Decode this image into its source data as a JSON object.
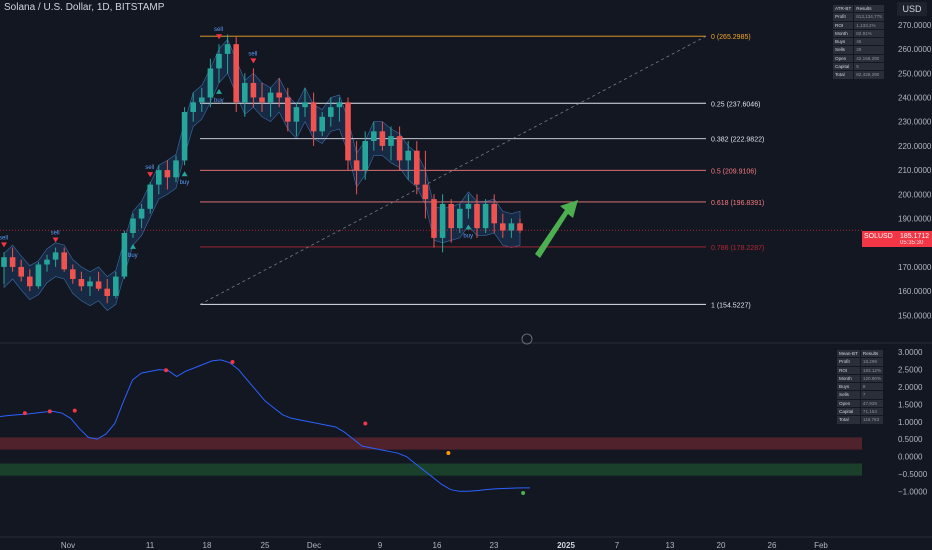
{
  "header": {
    "title": "Solana / U.S. Dollar, 1D, BITSTAMP"
  },
  "currency_button": "USD",
  "price_axis": {
    "ticks": [
      "270.0000",
      "260.0000",
      "250.0000",
      "240.0000",
      "230.0000",
      "220.0000",
      "210.0000",
      "200.0000",
      "190.0000",
      "180.0000",
      "170.0000",
      "160.0000",
      "150.0000"
    ]
  },
  "fib_levels": [
    {
      "label": "0 (265.2985)",
      "price": 265.2985,
      "color": "#f5a623"
    },
    {
      "label": "0.25 (237.6046)",
      "price": 237.6046,
      "color": "#e0e3eb"
    },
    {
      "label": "0.382 (222.9822)",
      "price": 222.9822,
      "color": "#e0e3eb"
    },
    {
      "label": "0.5 (209.9106)",
      "price": 209.9106,
      "color": "#f77c80"
    },
    {
      "label": "0.618 (196.8391)",
      "price": 196.8391,
      "color": "#f77c80"
    },
    {
      "label": "0.786 (178.2287)",
      "price": 178.2287,
      "color": "#b22833"
    },
    {
      "label": "1 (154.5227)",
      "price": 154.5227,
      "color": "#e0e3eb"
    }
  ],
  "current_price": {
    "symbol": "SOLUSD",
    "value": "185.1712",
    "countdown": "05:35:30"
  },
  "signal_labels": {
    "sell": "sell",
    "buy": "buy"
  },
  "time_axis": [
    "Nov",
    "11",
    "18",
    "25",
    "Dec",
    "9",
    "16",
    "23",
    "2025",
    "7",
    "13",
    "20",
    "26",
    "Feb"
  ],
  "oscillator_axis": {
    "ticks": [
      "3.0000",
      "2.5000",
      "2.0000",
      "1.5000",
      "1.0000",
      "0.5000",
      "0.0000",
      "−0.5000",
      "−1.0000"
    ]
  },
  "stats_top": {
    "header": [
      "ATR-BT",
      "Results"
    ],
    "rows": [
      [
        "Profit",
        "813,134,775"
      ],
      [
        "ROI",
        "1,133.2%"
      ],
      [
        "Month",
        "82.91%"
      ],
      [
        "Buys",
        "45"
      ],
      [
        "Sells",
        "28"
      ],
      [
        "Open",
        "42,158,290"
      ],
      [
        "Capital",
        "5"
      ],
      [
        "Total",
        "82,428,290"
      ]
    ]
  },
  "stats_bottom": {
    "header": [
      "Mean-BT",
      "Results"
    ],
    "rows": [
      [
        "Profit",
        "18,299"
      ],
      [
        "ROI",
        "183.12%"
      ],
      [
        "Month",
        "120.90%"
      ],
      [
        "Buys",
        "8"
      ],
      [
        "Sells",
        "7"
      ],
      [
        "Open",
        "47,929"
      ],
      [
        "Capital",
        "71,154"
      ],
      [
        "Total",
        "118,783"
      ]
    ]
  },
  "colors": {
    "bull": "#26a69a",
    "bear": "#f23645",
    "bull_candle": "#26a69a",
    "bear_candle": "#ef5350",
    "band_up": "#1f4a80",
    "band_down": "#8a5a20",
    "arrow": "#4caf50"
  },
  "chart_data": {
    "type": "candlestick",
    "price_ylim": [
      146,
      272
    ],
    "x_dates": [
      "Oct 28",
      "Oct 29",
      "Oct 30",
      "Oct 31",
      "Nov 1",
      "Nov 2",
      "Nov 3",
      "Nov 4",
      "Nov 5",
      "Nov 6",
      "Nov 7",
      "Nov 8",
      "Nov 9",
      "Nov 10",
      "Nov 11",
      "Nov 12",
      "Nov 13",
      "Nov 14",
      "Nov 15",
      "Nov 16",
      "Nov 17",
      "Nov 18",
      "Nov 19",
      "Nov 20",
      "Nov 21",
      "Nov 22",
      "Nov 23",
      "Nov 24",
      "Nov 25",
      "Nov 26",
      "Nov 27",
      "Nov 28",
      "Nov 29",
      "Nov 30",
      "Dec 1",
      "Dec 2",
      "Dec 3",
      "Dec 4",
      "Dec 5",
      "Dec 6",
      "Dec 7",
      "Dec 8",
      "Dec 9",
      "Dec 10",
      "Dec 11",
      "Dec 12",
      "Dec 13",
      "Dec 14",
      "Dec 15",
      "Dec 16",
      "Dec 17",
      "Dec 18",
      "Dec 19",
      "Dec 20",
      "Dec 21",
      "Dec 22",
      "Dec 23",
      "Dec 24",
      "Dec 25",
      "Dec 26",
      "Dec 27"
    ],
    "ohlc": [
      [
        170,
        176,
        163,
        174
      ],
      [
        174,
        178,
        168,
        170
      ],
      [
        170,
        173,
        164,
        166
      ],
      [
        166,
        169,
        160,
        162
      ],
      [
        162,
        172,
        161,
        171
      ],
      [
        171,
        175,
        168,
        173
      ],
      [
        173,
        178,
        170,
        176
      ],
      [
        176,
        178,
        168,
        169
      ],
      [
        169,
        171,
        163,
        165
      ],
      [
        165,
        168,
        160,
        162
      ],
      [
        162,
        166,
        158,
        164
      ],
      [
        164,
        168,
        160,
        161
      ],
      [
        161,
        165,
        155,
        158
      ],
      [
        158,
        168,
        157,
        166
      ],
      [
        166,
        185,
        165,
        184
      ],
      [
        184,
        192,
        182,
        190
      ],
      [
        190,
        196,
        186,
        194
      ],
      [
        194,
        205,
        192,
        204
      ],
      [
        204,
        212,
        200,
        210
      ],
      [
        210,
        214,
        202,
        207
      ],
      [
        207,
        216,
        205,
        214
      ],
      [
        214,
        236,
        212,
        234
      ],
      [
        234,
        242,
        230,
        238
      ],
      [
        238,
        244,
        234,
        240
      ],
      [
        240,
        256,
        236,
        252
      ],
      [
        252,
        262,
        246,
        258
      ],
      [
        258,
        266,
        250,
        262
      ],
      [
        262,
        265,
        234,
        238
      ],
      [
        238,
        250,
        232,
        246
      ],
      [
        246,
        252,
        236,
        240
      ],
      [
        240,
        246,
        234,
        238
      ],
      [
        238,
        244,
        232,
        242
      ],
      [
        242,
        248,
        236,
        240
      ],
      [
        240,
        244,
        226,
        230
      ],
      [
        230,
        238,
        224,
        236
      ],
      [
        236,
        244,
        232,
        238
      ],
      [
        238,
        242,
        220,
        226
      ],
      [
        226,
        234,
        224,
        232
      ],
      [
        232,
        240,
        228,
        236
      ],
      [
        236,
        240,
        230,
        238
      ],
      [
        238,
        240,
        210,
        214
      ],
      [
        214,
        222,
        200,
        210
      ],
      [
        210,
        226,
        206,
        222
      ],
      [
        222,
        230,
        218,
        226
      ],
      [
        226,
        230,
        218,
        220
      ],
      [
        220,
        228,
        214,
        224
      ],
      [
        224,
        228,
        210,
        214
      ],
      [
        214,
        222,
        206,
        218
      ],
      [
        218,
        222,
        200,
        204
      ],
      [
        204,
        218,
        190,
        198
      ],
      [
        198,
        200,
        178,
        182
      ],
      [
        182,
        200,
        176,
        196
      ],
      [
        196,
        198,
        180,
        186
      ],
      [
        186,
        196,
        184,
        194
      ],
      [
        194,
        200,
        190,
        196
      ],
      [
        196,
        200,
        182,
        186
      ],
      [
        186,
        198,
        184,
        196
      ],
      [
        196,
        200,
        184,
        188
      ],
      [
        188,
        192,
        182,
        185
      ],
      [
        185,
        190,
        182,
        188
      ],
      [
        188,
        190,
        184,
        185
      ]
    ],
    "buy_signals": [
      "Nov 12",
      "Nov 18",
      "Nov 22",
      "Dec 21"
    ],
    "sell_signals": [
      "Oct 28",
      "Nov 3",
      "Nov 14",
      "Nov 22",
      "Nov 26"
    ],
    "oscillator": {
      "ylim": [
        -1.25,
        3.15
      ],
      "values": [
        1.15,
        1.18,
        1.2,
        1.22,
        1.25,
        1.28,
        1.3,
        1.25,
        1.1,
        0.8,
        0.55,
        0.5,
        0.65,
        0.95,
        1.6,
        2.2,
        2.4,
        2.45,
        2.5,
        2.48,
        2.3,
        2.45,
        2.55,
        2.65,
        2.75,
        2.78,
        2.7,
        2.5,
        2.2,
        1.9,
        1.6,
        1.4,
        1.2,
        1.1,
        1.05,
        1.0,
        0.95,
        0.9,
        0.85,
        0.7,
        0.5,
        0.3,
        0.25,
        0.2,
        0.15,
        0.1,
        0.0,
        -0.2,
        -0.4,
        -0.6,
        -0.8,
        -0.95,
        -1.0,
        -1.0,
        -0.98,
        -0.95,
        -0.93,
        -0.92,
        -0.91,
        -0.9,
        -0.9
      ],
      "red_zone": [
        0.2,
        0.55
      ],
      "green_zone": [
        -0.55,
        -0.2
      ],
      "dots": [
        [
          3,
          1.25,
          "red"
        ],
        [
          6,
          1.3,
          "red"
        ],
        [
          9,
          1.32,
          "red"
        ],
        [
          20,
          2.48,
          "red"
        ],
        [
          28,
          2.72,
          "red"
        ],
        [
          44,
          0.95,
          "red"
        ],
        [
          54,
          0.1,
          "orange"
        ],
        [
          63,
          -1.05,
          "green"
        ]
      ]
    }
  }
}
